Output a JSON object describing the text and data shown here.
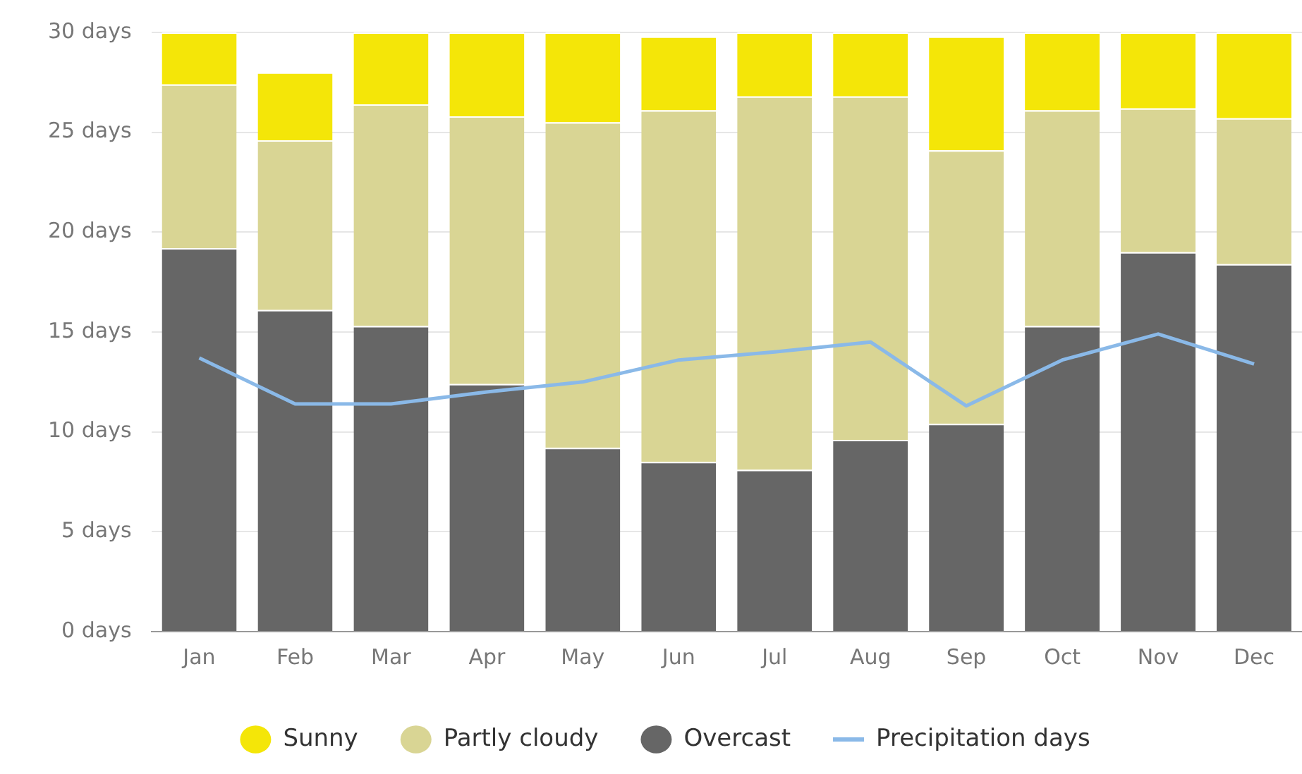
{
  "chart_data": {
    "type": "bar",
    "stacked": true,
    "categories": [
      "Jan",
      "Feb",
      "Mar",
      "Apr",
      "May",
      "Jun",
      "Jul",
      "Aug",
      "Sep",
      "Oct",
      "Nov",
      "Dec"
    ],
    "series": [
      {
        "name": "Overcast",
        "color": "#666666",
        "values": [
          19.2,
          16.1,
          15.3,
          12.4,
          9.2,
          8.5,
          8.1,
          9.6,
          10.4,
          15.3,
          19.0,
          18.4
        ]
      },
      {
        "name": "Partly cloudy",
        "color": "#d9d594",
        "values": [
          8.2,
          8.5,
          11.1,
          13.4,
          16.3,
          17.6,
          18.7,
          17.2,
          13.7,
          10.8,
          7.2,
          7.3
        ]
      },
      {
        "name": "Sunny",
        "color": "#f4e608",
        "values": [
          2.6,
          3.4,
          3.6,
          4.2,
          4.5,
          3.7,
          3.2,
          3.2,
          5.7,
          3.9,
          3.8,
          4.3
        ]
      },
      {
        "name": "Precipitation days",
        "type": "line",
        "color": "#8ab9e8",
        "values": [
          13.7,
          11.4,
          11.4,
          12.0,
          12.5,
          13.6,
          14.0,
          14.5,
          11.3,
          13.6,
          14.9,
          13.4
        ]
      }
    ],
    "ylim": [
      0,
      30
    ],
    "yticks": [
      {
        "value": 0,
        "label": "0 days"
      },
      {
        "value": 5,
        "label": "5 days"
      },
      {
        "value": 10,
        "label": "10 days"
      },
      {
        "value": 15,
        "label": "15 days"
      },
      {
        "value": 20,
        "label": "20 days"
      },
      {
        "value": 25,
        "label": "25 days"
      },
      {
        "value": 30,
        "label": "30 days"
      }
    ],
    "grid": "y",
    "legend": "bottom",
    "marker": "none",
    "line_style": "solid"
  }
}
